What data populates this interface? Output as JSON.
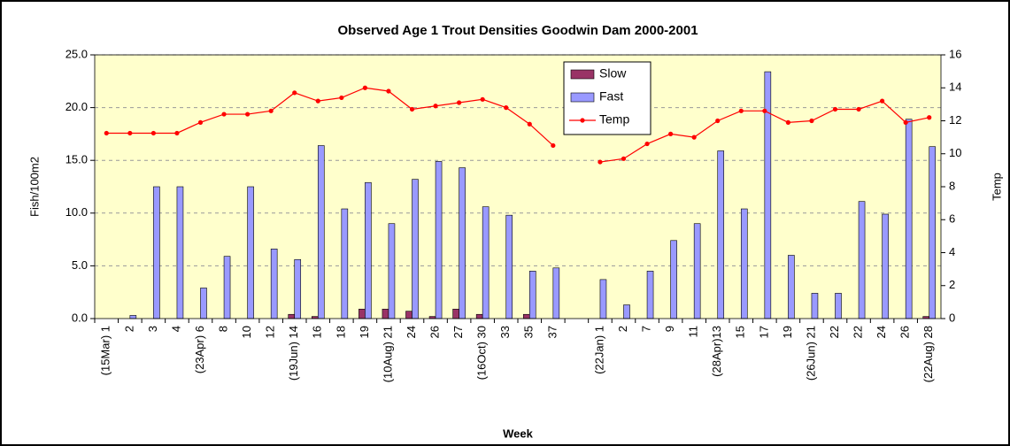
{
  "chart_data": {
    "type": "bar-line",
    "title": "Observed Age 1 Trout Densities Goodwin Dam 2000-2001",
    "x_label": "Week",
    "y_label": "Fish/100m2",
    "y2_label": "Temp",
    "categories": [
      "(15Mar) 1",
      "2",
      "3",
      "4",
      "(23Apr) 6",
      "8",
      "10",
      "12",
      "(19Jun) 14",
      "16",
      "18",
      "19",
      "(10Aug) 21",
      "24",
      "26",
      "27",
      "(16Oct) 30",
      "33",
      "35",
      "37",
      null,
      "(22Jan) 1",
      "2",
      "7",
      "9",
      "11",
      "(28Apr)13",
      "15",
      "17",
      "19",
      "(26Jun) 21",
      "22",
      "22",
      "24",
      "26",
      "(22Aug) 28"
    ],
    "series": [
      {
        "name": "Slow",
        "type": "bar",
        "color": "#993366",
        "values": [
          0,
          0,
          0,
          0,
          0,
          0,
          0,
          0,
          0.4,
          0.2,
          0,
          0.9,
          0.9,
          0.7,
          0.2,
          0.9,
          0.4,
          0,
          0.4,
          0,
          null,
          0,
          0,
          0,
          0,
          0,
          0,
          0,
          0,
          0,
          0,
          0,
          0,
          0,
          0,
          0.2
        ]
      },
      {
        "name": "Fast",
        "type": "bar",
        "color": "#9999ff",
        "values": [
          0,
          0.3,
          12.5,
          12.5,
          2.9,
          5.9,
          12.5,
          6.6,
          5.6,
          16.4,
          10.4,
          12.9,
          9.0,
          13.2,
          14.9,
          14.3,
          10.6,
          9.8,
          4.5,
          4.8,
          null,
          3.7,
          1.3,
          4.5,
          7.4,
          9.0,
          15.9,
          10.4,
          23.4,
          6.0,
          2.4,
          2.4,
          11.1,
          9.9,
          18.9,
          16.3
        ]
      },
      {
        "name": "Temp",
        "type": "line",
        "axis": "y2",
        "color": "#ff0000",
        "values": [
          11.25,
          11.25,
          11.25,
          11.25,
          11.9,
          12.4,
          12.4,
          12.6,
          13.7,
          13.2,
          13.4,
          14.0,
          13.8,
          12.7,
          12.9,
          13.1,
          13.3,
          12.8,
          11.8,
          10.5,
          null,
          9.5,
          9.7,
          10.6,
          11.2,
          11.0,
          12.0,
          12.6,
          12.6,
          11.9,
          12.0,
          12.7,
          12.7,
          13.2,
          11.9,
          12.2
        ]
      }
    ],
    "ylim": [
      0,
      25
    ],
    "yticks": [
      {
        "value": 0,
        "label": "0.0"
      },
      {
        "value": 5,
        "label": "5.0"
      },
      {
        "value": 10,
        "label": "10.0"
      },
      {
        "value": 15,
        "label": "15.0"
      },
      {
        "value": 20,
        "label": "20.0"
      },
      {
        "value": 25,
        "label": "25.0"
      }
    ],
    "y2lim": [
      0,
      16
    ],
    "y2ticks": [
      0,
      2,
      4,
      6,
      8,
      10,
      12,
      14,
      16
    ],
    "grid": true,
    "legend": "top-center",
    "plot_background": "#ffffcc"
  }
}
